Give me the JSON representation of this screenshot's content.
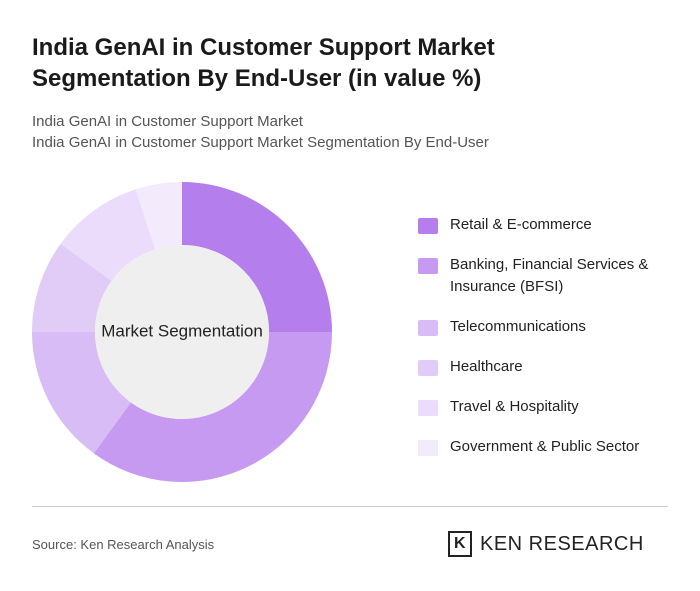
{
  "chart_data": {
    "type": "pie",
    "title": "India GenAI in Customer Support Market Segmentation By End-User (in value %)",
    "subtitle": [
      "India GenAI in Customer Support Market",
      "India GenAI in Customer Support Market Segmentation By End-User"
    ],
    "center_label": "Market Segmentation",
    "categories": [
      "Retail & E-commerce",
      "Banking, Financial Services & Insurance (BFSI)",
      "Telecommunications",
      "Healthcare",
      "Travel & Hospitality",
      "Government & Public Sector"
    ],
    "values": [
      25,
      35,
      15,
      10,
      10,
      5
    ],
    "colors": [
      "#b47fec",
      "#c59af0",
      "#d7bcf5",
      "#e0ccf7",
      "#eadcfa",
      "#f3ebfc"
    ],
    "source": "Source: Ken Research Analysis",
    "brand": "KEN RESEARCH"
  }
}
